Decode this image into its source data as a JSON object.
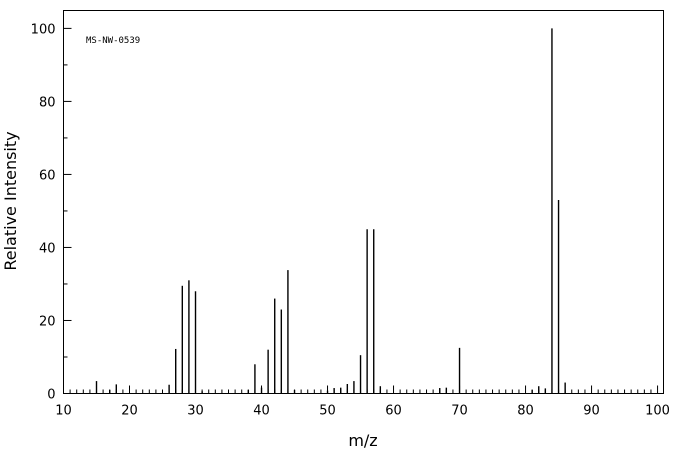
{
  "chart_data": {
    "type": "bar",
    "annotation": "MS-NW-0539",
    "xlabel": "m/z",
    "ylabel": "Relative Intensity",
    "x": [
      15,
      17,
      18,
      26,
      27,
      28,
      29,
      30,
      31,
      38,
      39,
      40,
      41,
      42,
      43,
      44,
      45,
      50,
      51,
      52,
      53,
      54,
      55,
      56,
      57,
      58,
      67,
      68,
      70,
      81,
      82,
      83,
      84,
      85,
      86
    ],
    "values": [
      3.4,
      1,
      2.5,
      2.4,
      12.2,
      29.5,
      31,
      28,
      0.6,
      1,
      8,
      1.6,
      12,
      26,
      23,
      33.8,
      1,
      0.8,
      1.5,
      1.6,
      2.6,
      3.4,
      10.5,
      45,
      45,
      2,
      1.5,
      1.6,
      12.5,
      1,
      2,
      1.4,
      100,
      53,
      3
    ],
    "color": "#000000",
    "xlim": [
      10,
      100.9
    ],
    "ylim": [
      0,
      104.9
    ],
    "xticks": [
      10,
      20,
      30,
      40,
      50,
      60,
      70,
      80,
      90,
      100
    ],
    "xminorticks": [
      11,
      12,
      13,
      14,
      15,
      16,
      17,
      18,
      19,
      21,
      22,
      23,
      24,
      25,
      26,
      27,
      28,
      29,
      31,
      32,
      33,
      34,
      35,
      36,
      37,
      38,
      39,
      41,
      42,
      43,
      44,
      45,
      46,
      47,
      48,
      49,
      51,
      52,
      53,
      54,
      55,
      56,
      57,
      58,
      59,
      61,
      62,
      63,
      64,
      65,
      66,
      67,
      68,
      69,
      71,
      72,
      73,
      74,
      75,
      76,
      77,
      78,
      79,
      81,
      82,
      83,
      84,
      85,
      86,
      87,
      88,
      89,
      91,
      92,
      93,
      94,
      95,
      96,
      97,
      98,
      99
    ],
    "yticks": [
      0,
      20,
      40,
      60,
      80,
      100
    ],
    "yminorticks": [
      10,
      30,
      50,
      70,
      90
    ]
  }
}
